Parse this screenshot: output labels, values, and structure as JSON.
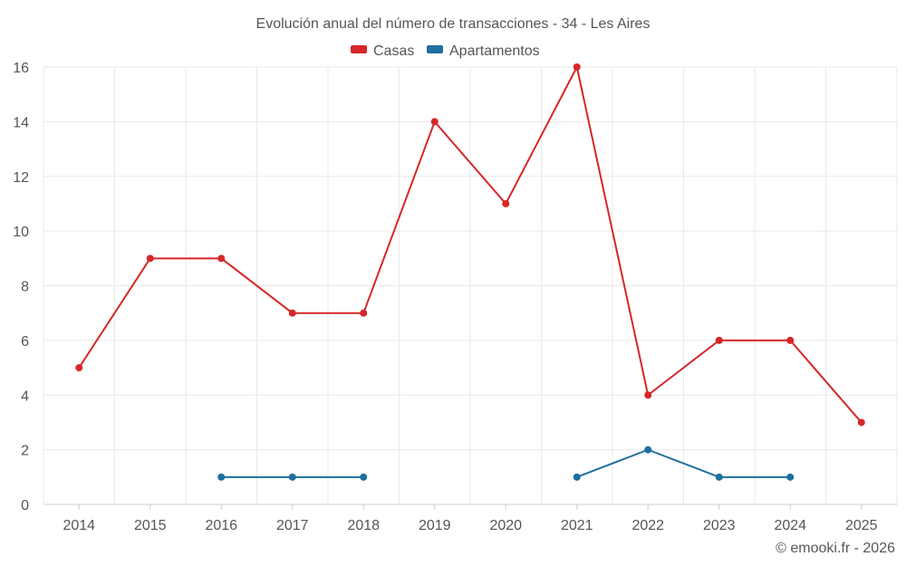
{
  "chart_data": {
    "type": "line",
    "title": "Evolución anual del número de transacciones - 34 - Les Aires",
    "xlabel": "",
    "ylabel": "",
    "categories": [
      "2014",
      "2015",
      "2016",
      "2017",
      "2018",
      "2019",
      "2020",
      "2021",
      "2022",
      "2023",
      "2024",
      "2025"
    ],
    "ylim": [
      0,
      16
    ],
    "yticks": [
      0,
      2,
      4,
      6,
      8,
      10,
      12,
      14,
      16
    ],
    "grid": true,
    "legend_position": "top-center",
    "series": [
      {
        "name": "Casas",
        "color": "#d62728",
        "values": [
          5,
          9,
          9,
          7,
          7,
          14,
          11,
          16,
          4,
          6,
          6,
          3
        ]
      },
      {
        "name": "Apartamentos",
        "color": "#1f6f9f",
        "values": [
          null,
          null,
          1,
          1,
          1,
          null,
          null,
          1,
          2,
          1,
          1,
          null
        ]
      }
    ],
    "credit": "© emooki.fr - 2026"
  }
}
